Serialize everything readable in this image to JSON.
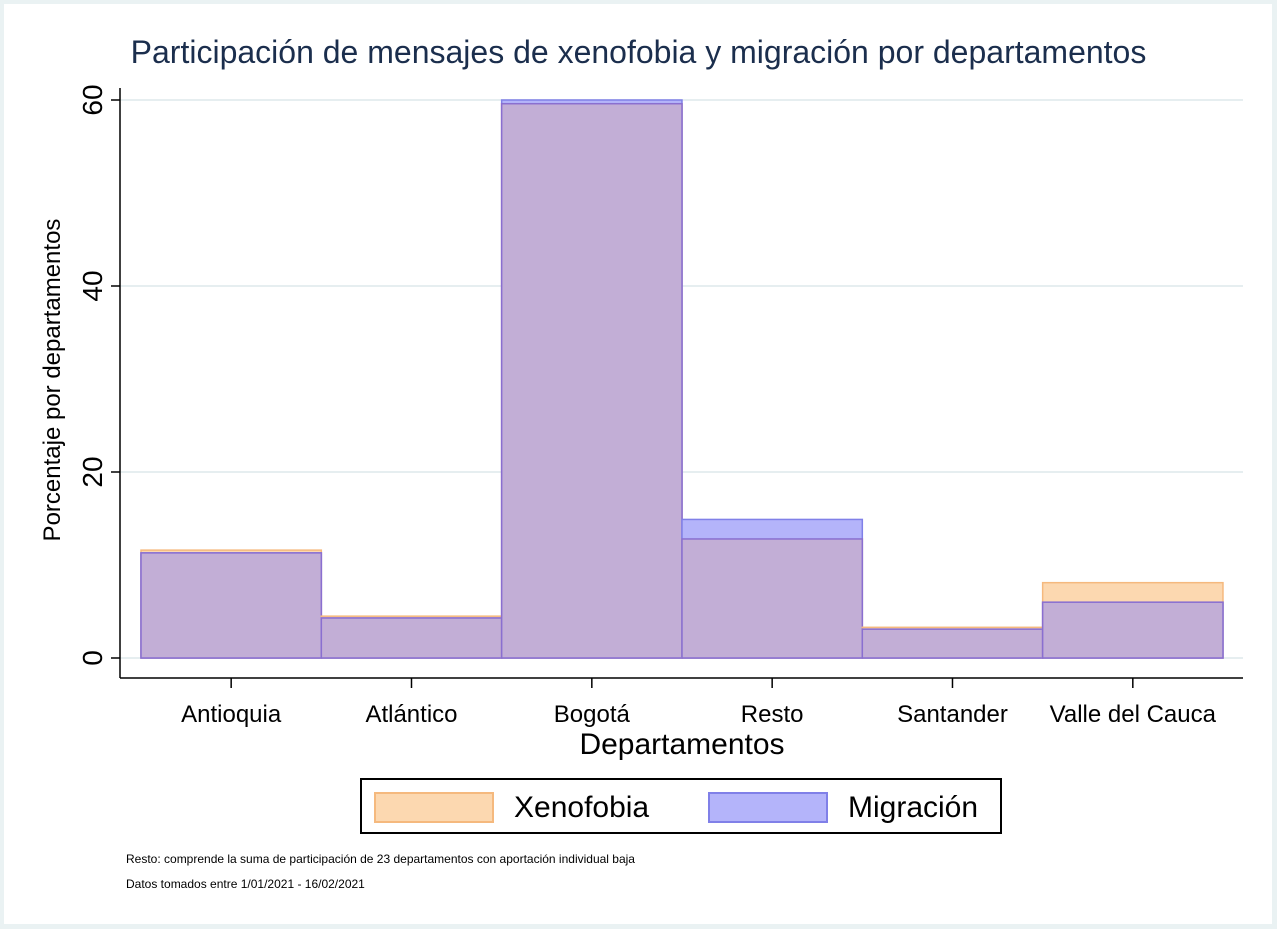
{
  "chart_data": {
    "type": "bar",
    "title": "Participación de mensajes de xenofobia y migración por departamentos",
    "xlabel": "Departamentos",
    "ylabel": "Porcentaje por departamentos",
    "categories": [
      "Antioquia",
      "Atlántico",
      "Bogotá",
      "Resto",
      "Santander",
      "Valle del Cauca"
    ],
    "series": [
      {
        "name": "Xenofobia",
        "values": [
          11.6,
          4.5,
          59.6,
          12.8,
          3.3,
          8.1
        ],
        "color": "#fcd8b0",
        "border": "#f5b97e"
      },
      {
        "name": "Migración",
        "values": [
          11.3,
          4.3,
          60.0,
          14.9,
          3.1,
          6.0
        ],
        "color": "#b4b4fa",
        "border": "#8080e8"
      }
    ],
    "overlap_color": "#c2aed6",
    "ylim": [
      0,
      60
    ],
    "yticks": [
      0,
      20,
      40,
      60
    ],
    "grid": true,
    "legend_position": "bottom"
  },
  "notes": [
    "Resto: comprende la suma de participación de 23 departamentos con aportación individual baja",
    "Datos tomados entre 1/01/2021 - 16/02/2021"
  ]
}
